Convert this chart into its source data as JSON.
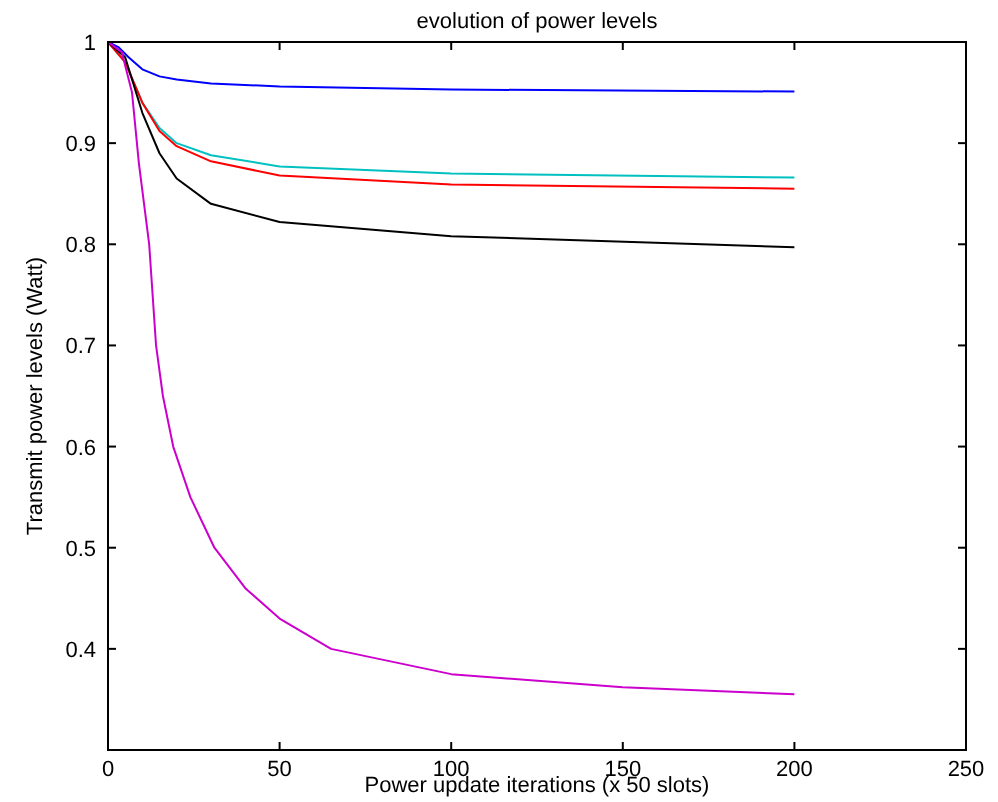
{
  "chart_data": {
    "type": "line",
    "title": "evolution of power levels",
    "xlabel": "Power update iterations (x 50 slots)",
    "ylabel": "Transmit power levels (Watt)",
    "xlim": [
      0,
      250
    ],
    "ylim": [
      0.3,
      1
    ],
    "xticks": [
      0,
      50,
      100,
      150,
      200,
      250
    ],
    "yticks": [
      {
        "value": 0.4,
        "label": "0.4"
      },
      {
        "value": 0.5,
        "label": "0.5"
      },
      {
        "value": 0.6,
        "label": "0.6"
      },
      {
        "value": 0.7,
        "label": "0.7"
      },
      {
        "value": 0.8,
        "label": "0.8"
      },
      {
        "value": 0.9,
        "label": "0.9"
      },
      {
        "value": 1,
        "label": "1"
      }
    ],
    "grid": false,
    "series": [
      {
        "color": "#0000ff",
        "x": [
          0,
          3,
          6,
          10,
          15,
          20,
          30,
          50,
          100,
          200
        ],
        "values": [
          1,
          0.995,
          0.985,
          0.973,
          0.966,
          0.963,
          0.959,
          0.956,
          0.953,
          0.951
        ]
      },
      {
        "color": "#00c0c0",
        "x": [
          0,
          5,
          10,
          15,
          20,
          30,
          50,
          100,
          200
        ],
        "values": [
          1,
          0.98,
          0.94,
          0.915,
          0.9,
          0.888,
          0.877,
          0.87,
          0.866
        ]
      },
      {
        "color": "#ff0000",
        "x": [
          0,
          5,
          10,
          15,
          20,
          30,
          50,
          100,
          200
        ],
        "values": [
          1,
          0.98,
          0.94,
          0.912,
          0.897,
          0.882,
          0.868,
          0.859,
          0.855
        ]
      },
      {
        "color": "#000000",
        "x": [
          0,
          5,
          10,
          15,
          20,
          30,
          50,
          100,
          200
        ],
        "values": [
          1,
          0.985,
          0.93,
          0.89,
          0.865,
          0.84,
          0.822,
          0.808,
          0.797
        ]
      },
      {
        "color": "#cc00cc",
        "x": [
          0,
          4,
          7,
          9,
          12,
          14,
          16,
          19,
          24,
          31,
          40,
          50,
          65,
          100,
          150,
          200
        ],
        "values": [
          1,
          0.99,
          0.95,
          0.88,
          0.8,
          0.7,
          0.65,
          0.6,
          0.55,
          0.5,
          0.46,
          0.43,
          0.4,
          0.375,
          0.362,
          0.355
        ]
      }
    ]
  }
}
